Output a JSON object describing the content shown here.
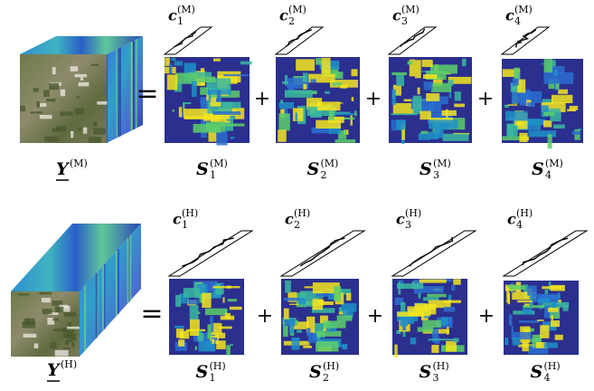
{
  "rows": [
    {
      "cube": {
        "symbol": "Y",
        "superscript": "(M)"
      },
      "operators": [
        "=",
        "+",
        "+",
        "+"
      ],
      "terms": [
        {
          "signature": {
            "symbol": "c",
            "subscript": "1",
            "superscript": "(M)"
          },
          "map": {
            "symbol": "S",
            "subscript": "1",
            "superscript": "(M)"
          }
        },
        {
          "signature": {
            "symbol": "c",
            "subscript": "2",
            "superscript": "(M)"
          },
          "map": {
            "symbol": "S",
            "subscript": "2",
            "superscript": "(M)"
          }
        },
        {
          "signature": {
            "symbol": "c",
            "subscript": "3",
            "superscript": "(M)"
          },
          "map": {
            "symbol": "S",
            "subscript": "3",
            "superscript": "(M)"
          }
        },
        {
          "signature": {
            "symbol": "c",
            "subscript": "4",
            "superscript": "(M)"
          },
          "map": {
            "symbol": "S",
            "subscript": "4",
            "superscript": "(M)"
          }
        }
      ]
    },
    {
      "cube": {
        "symbol": "Y",
        "superscript": "(H)"
      },
      "operators": [
        "=",
        "+",
        "+",
        "+"
      ],
      "terms": [
        {
          "signature": {
            "symbol": "c",
            "subscript": "1",
            "superscript": "(H)"
          },
          "map": {
            "symbol": "S",
            "subscript": "1",
            "superscript": "(H)"
          }
        },
        {
          "signature": {
            "symbol": "c",
            "subscript": "2",
            "superscript": "(H)"
          },
          "map": {
            "symbol": "S",
            "subscript": "2",
            "superscript": "(H)"
          }
        },
        {
          "signature": {
            "symbol": "c",
            "subscript": "3",
            "superscript": "(H)"
          },
          "map": {
            "symbol": "S",
            "subscript": "3",
            "superscript": "(H)"
          }
        },
        {
          "signature": {
            "symbol": "c",
            "subscript": "4",
            "superscript": "(H)"
          },
          "map": {
            "symbol": "S",
            "subscript": "4",
            "superscript": "(H)"
          }
        }
      ]
    }
  ]
}
